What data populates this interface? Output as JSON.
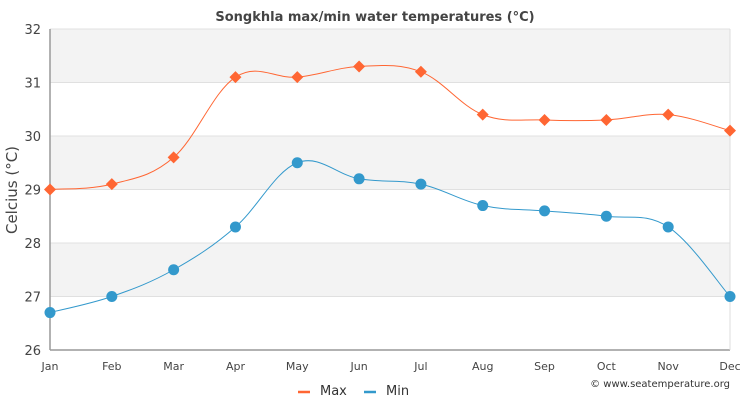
{
  "chart_data": {
    "type": "line",
    "title": "Songkhla max/min water temperatures (°C)",
    "xlabel": "",
    "ylabel": "Celcius (°C)",
    "categories": [
      "Jan",
      "Feb",
      "Mar",
      "Apr",
      "May",
      "Jun",
      "Jul",
      "Aug",
      "Sep",
      "Oct",
      "Nov",
      "Dec"
    ],
    "ylim": [
      26,
      32
    ],
    "yticks": [
      26,
      27,
      28,
      29,
      30,
      31,
      32
    ],
    "grid": true,
    "legend": "bottom-center",
    "series": [
      {
        "name": "Max",
        "color": "#ff6633",
        "marker": "diamond",
        "values": [
          29.0,
          29.1,
          29.6,
          31.1,
          31.1,
          31.3,
          31.2,
          30.4,
          30.3,
          30.3,
          30.4,
          30.1
        ]
      },
      {
        "name": "Min",
        "color": "#3399cc",
        "marker": "circle",
        "values": [
          26.7,
          27.0,
          27.5,
          28.3,
          29.5,
          29.2,
          29.1,
          28.7,
          28.6,
          28.5,
          28.3,
          27.0
        ]
      }
    ],
    "credit": "© www.seatemperature.org"
  }
}
